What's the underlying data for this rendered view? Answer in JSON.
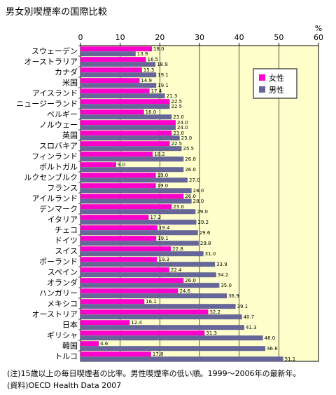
{
  "chart_data": {
    "type": "bar",
    "orientation": "horizontal",
    "title": "男女別喫煙率の国際比較",
    "unit": "%",
    "xlim": [
      0,
      60
    ],
    "xticks": [
      0,
      10,
      20,
      30,
      40,
      50,
      60
    ],
    "grid": true,
    "legend_position": "top-right",
    "categories": [
      "スウェーデン",
      "オーストラリア",
      "カナダ",
      "米国",
      "アイスランド",
      "ニュージーランド",
      "ベルギー",
      "ノルウェー",
      "英国",
      "スロバキア",
      "フィンランド",
      "ポルトガル",
      "ルクセンブルク",
      "フランス",
      "アイルランド",
      "デンマーク",
      "イタリア",
      "チェコ",
      "ドイツ",
      "スイス",
      "ポーランド",
      "スペイン",
      "オランダ",
      "ハンガリー",
      "メキシコ",
      "オーストリア",
      "日本",
      "ギリシャ",
      "韓国",
      "トルコ"
    ],
    "series": [
      {
        "name": "女性",
        "color": "#ff00cc",
        "values": [
          18.0,
          16.5,
          15.5,
          14.9,
          17.4,
          22.5,
          16.0,
          24.0,
          23.0,
          22.5,
          18.2,
          9.0,
          19.0,
          19.0,
          26.0,
          23.0,
          17.2,
          19.4,
          19.1,
          22.8,
          19.3,
          22.4,
          26.0,
          24.6,
          16.1,
          32.2,
          12.4,
          31.3,
          4.6,
          17.8
        ]
      },
      {
        "name": "男性",
        "color": "#666699",
        "values": [
          13.9,
          18.9,
          19.1,
          19.1,
          21.3,
          22.5,
          23.0,
          24.0,
          25.0,
          25.5,
          26.0,
          26.0,
          27.0,
          28.0,
          28.0,
          29.0,
          29.2,
          29.6,
          29.8,
          31.0,
          33.9,
          34.2,
          35.0,
          36.9,
          39.1,
          40.7,
          41.3,
          46.0,
          46.6,
          51.1
        ]
      }
    ],
    "plot_background": "#ffffcc"
  },
  "notes": [
    "(注)15歳以上の毎日喫煙者の比率。男性喫煙率の低い順。1999～2006年の最新年。",
    "(資料)OECD Health Data 2007"
  ]
}
